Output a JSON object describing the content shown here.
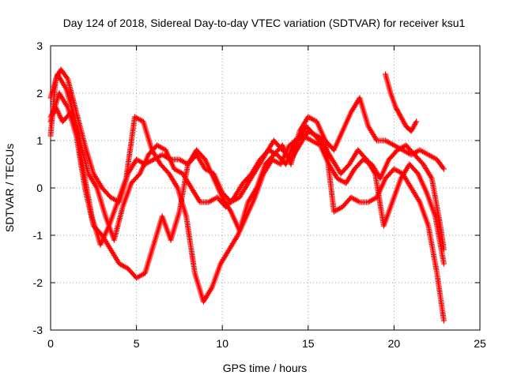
{
  "chart_data": {
    "type": "scatter",
    "title": "Day 124 of 2018, Sidereal Day-to-day VTEC variation (SDTVAR) for receiver ksu1",
    "xlabel": "GPS time / hours",
    "ylabel": "SDTVAR / TECUs",
    "xlim": [
      0,
      25
    ],
    "ylim": [
      -3,
      3
    ],
    "xticks": [
      "0",
      "5",
      "10",
      "15",
      "20",
      "25"
    ],
    "yticks": [
      "-3",
      "-2",
      "-1",
      "0",
      "1",
      "2",
      "3"
    ],
    "grid": true,
    "marker": "+",
    "color": "#ff0000",
    "series": [
      {
        "x": [
          0.0,
          0.3,
          0.6,
          1.0,
          1.5,
          2.0,
          2.5,
          3.0,
          3.5,
          4.0,
          4.5,
          5.0,
          5.5,
          6.0,
          6.5,
          7.0,
          7.5,
          8.0,
          8.5,
          9.0,
          9.5,
          10.0,
          10.5,
          11.0,
          11.5,
          12.0,
          12.5,
          13.0,
          13.5,
          14.0,
          14.5,
          15.0,
          15.5,
          16.0,
          16.5,
          17.0,
          17.5,
          18.0,
          18.5,
          19.0,
          19.5,
          20.0,
          20.5,
          21.0,
          21.5,
          22.0,
          22.5,
          22.9
        ],
        "y": [
          1.1,
          2.3,
          2.5,
          2.3,
          1.6,
          0.9,
          0.3,
          0.0,
          -0.2,
          -0.3,
          0.3,
          0.6,
          0.5,
          0.6,
          0.7,
          0.6,
          0.6,
          0.5,
          0.8,
          0.6,
          0.2,
          -0.2,
          -0.5,
          -0.9,
          -0.3,
          0.0,
          0.5,
          0.7,
          0.9,
          0.5,
          1.2,
          1.5,
          1.4,
          1.0,
          0.8,
          1.2,
          1.6,
          1.9,
          1.3,
          1.0,
          1.0,
          0.9,
          0.8,
          0.7,
          0.8,
          0.7,
          0.6,
          0.4
        ]
      },
      {
        "x": [
          0.0,
          0.3,
          0.7,
          1.2,
          1.7,
          2.2,
          2.7,
          3.2,
          3.7,
          4.2,
          4.7,
          5.2,
          5.7,
          6.2,
          6.7,
          7.2,
          7.7,
          8.2,
          8.7,
          9.2,
          9.7,
          10.2,
          10.7,
          11.2,
          11.7,
          12.2,
          12.7,
          13.2,
          13.7,
          14.2,
          14.7,
          15.2,
          15.7,
          16.2,
          16.7,
          17.2,
          17.7,
          18.2,
          18.7,
          19.2,
          19.7,
          20.2,
          20.7,
          21.2,
          21.7,
          22.2,
          22.7,
          22.9
        ],
        "y": [
          1.5,
          1.7,
          1.4,
          1.6,
          1.0,
          0.3,
          0.0,
          -0.6,
          -1.1,
          -0.4,
          0.1,
          0.3,
          0.7,
          0.9,
          0.8,
          0.4,
          0.3,
          0.0,
          -0.3,
          -0.3,
          -0.2,
          -0.4,
          -0.2,
          0.1,
          0.3,
          0.6,
          0.8,
          0.7,
          0.5,
          1.0,
          1.1,
          1.0,
          0.9,
          0.5,
          0.2,
          0.1,
          0.4,
          0.6,
          0.5,
          0.2,
          0.6,
          0.8,
          0.9,
          0.7,
          0.5,
          0.2,
          -0.8,
          -1.3
        ]
      },
      {
        "x": [
          0.0,
          0.4,
          0.9,
          1.4,
          1.9,
          2.4,
          2.9,
          3.4,
          3.9,
          4.4,
          4.9,
          5.4,
          5.9,
          6.4,
          6.9,
          7.4,
          7.9,
          8.4,
          8.9,
          9.4,
          9.9,
          10.4,
          10.9,
          11.4,
          11.9,
          12.4,
          12.9,
          13.4,
          13.9,
          14.4,
          14.9,
          15.4,
          15.9,
          16.4,
          16.9,
          17.4,
          17.9,
          18.4,
          18.9,
          19.4,
          19.9,
          20.4,
          20.9,
          21.4,
          21.9,
          22.4,
          22.9
        ],
        "y": [
          1.9,
          2.4,
          2.1,
          1.5,
          0.4,
          -0.6,
          -1.2,
          -0.8,
          -0.3,
          0.2,
          1.5,
          1.4,
          0.8,
          0.5,
          0.3,
          0.0,
          -0.6,
          -1.8,
          -2.4,
          -2.1,
          -1.6,
          -1.3,
          -1.0,
          -0.6,
          -0.2,
          0.3,
          0.6,
          0.5,
          0.9,
          1.0,
          1.3,
          1.1,
          0.9,
          0.6,
          0.3,
          0.5,
          0.8,
          0.6,
          0.3,
          -0.8,
          -0.3,
          0.2,
          0.5,
          0.3,
          -0.1,
          -0.6,
          -1.6
        ]
      },
      {
        "x": [
          0.0,
          0.5,
          1.0,
          1.5,
          2.0,
          2.5,
          3.0,
          3.5,
          4.0,
          4.5,
          5.0,
          5.5,
          6.0,
          6.5,
          7.0,
          7.5,
          8.0,
          8.5,
          9.0,
          9.5,
          10.0,
          10.5,
          11.0,
          11.5,
          12.0,
          12.5,
          13.0,
          13.5,
          14.0,
          14.5,
          15.0,
          15.5,
          16.0,
          16.5,
          17.0,
          17.5,
          18.0,
          18.5,
          19.0,
          19.5,
          20.0,
          20.5,
          21.0,
          21.5,
          22.0,
          22.5,
          22.9
        ],
        "y": [
          1.4,
          2.0,
          1.7,
          1.1,
          0.0,
          -0.8,
          -1.0,
          -1.3,
          -1.6,
          -1.7,
          -1.9,
          -1.8,
          -1.2,
          -0.6,
          -1.1,
          -0.5,
          0.5,
          0.7,
          0.4,
          0.3,
          -0.1,
          -0.3,
          -0.2,
          0.1,
          0.4,
          0.7,
          1.0,
          0.8,
          0.6,
          0.9,
          1.2,
          1.1,
          1.0,
          -0.5,
          -0.4,
          -0.2,
          -0.3,
          -0.3,
          -0.2,
          0.2,
          0.4,
          0.3,
          0.0,
          -0.3,
          -0.8,
          -1.8,
          -2.8
        ]
      },
      {
        "x": [
          19.5,
          19.8,
          20.1,
          20.4,
          20.7,
          21.0,
          21.3
        ],
        "y": [
          2.4,
          2.0,
          1.7,
          1.5,
          1.3,
          1.2,
          1.4
        ]
      }
    ]
  }
}
